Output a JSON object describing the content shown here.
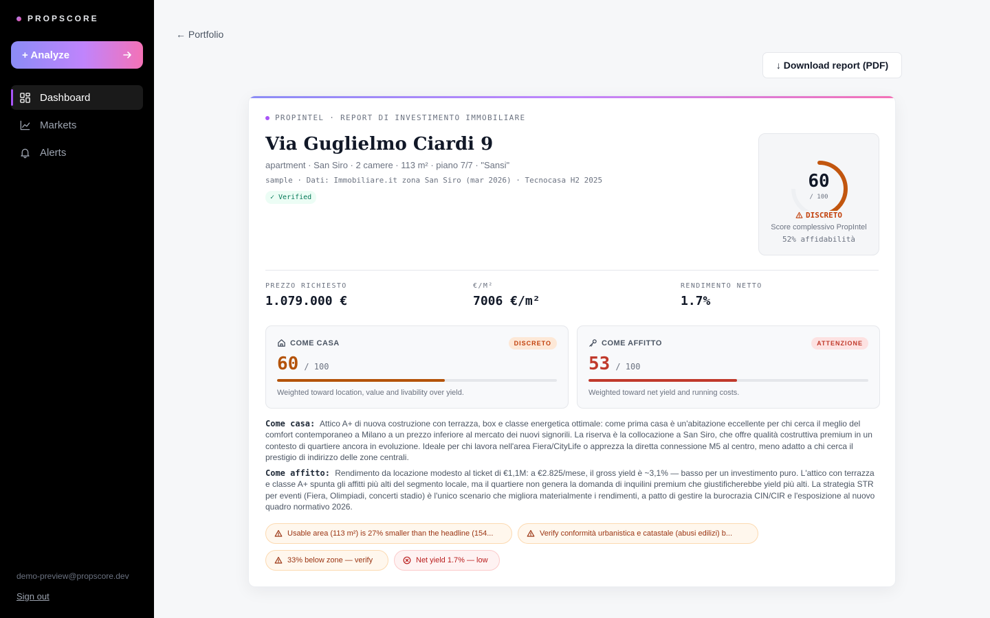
{
  "brand": {
    "name": "PROPSCORE"
  },
  "sidebar": {
    "analyze_label": "+ Analyze",
    "nav": [
      {
        "label": "Dashboard",
        "icon": "dashboard-icon",
        "active": true
      },
      {
        "label": "Markets",
        "icon": "chart-line-icon",
        "active": false
      },
      {
        "label": "Alerts",
        "icon": "bell-icon",
        "active": false
      }
    ],
    "user_email": "demo-preview@propscore.dev",
    "sign_out_label": "Sign out"
  },
  "header": {
    "back_label": "← Portfolio",
    "download_label": "↓ Download report (PDF)"
  },
  "report": {
    "eyebrow": "PROPINTEL · REPORT DI INVESTIMENTO IMMOBILIARE",
    "title": "Via Guglielmo Ciardi 9",
    "subtitle": "apartment · San Siro · 2 camere · 113 m² · piano 7/7 · \"Sansi\"",
    "source": "sample · Dati: Immobiliare.it zona San Siro (mar 2026) · Tecnocasa H2 2025",
    "verified_label": "✓ Verified",
    "score": {
      "value": "60",
      "denominator": "/ 100",
      "fraction": 0.6,
      "rating": "DISCRETO",
      "caption": "Score complessivo PropIntel",
      "reliability": "52% affidabilità",
      "color": "#c2560f"
    },
    "metrics": [
      {
        "label": "PREZZO RICHIESTO",
        "value": "1.079.000 €"
      },
      {
        "label": "€/M²",
        "value": "7006 €/m²"
      },
      {
        "label": "RENDIMENTO NETTO",
        "value": "1.7%"
      }
    ],
    "subscores": [
      {
        "label": "COME CASA",
        "icon": "home-icon",
        "badge": "DISCRETO",
        "badge_bg": "#fde8d7",
        "badge_color": "#c2410c",
        "score": "60",
        "denominator": "/ 100",
        "fraction": 0.6,
        "color": "#b45309",
        "note": "Weighted toward location, value and livability over yield."
      },
      {
        "label": "COME AFFITTO",
        "icon": "key-icon",
        "badge": "ATTENZIONE",
        "badge_bg": "#fde2e2",
        "badge_color": "#c0392b",
        "score": "53",
        "denominator": "/ 100",
        "fraction": 0.53,
        "color": "#c0392b",
        "note": "Weighted toward net yield and running costs."
      }
    ],
    "analysis": {
      "casa_label": "Come casa:",
      "casa_text": "Attico A+ di nuova costruzione con terrazza, box e classe energetica ottimale: come prima casa è un'abitazione eccellente per chi cerca il meglio del comfort contemporaneo a Milano a un prezzo inferiore al mercato dei nuovi signorili. La riserva è la collocazione a San Siro, che offre qualità costruttiva premium in un contesto di quartiere ancora in evoluzione. Ideale per chi lavora nell'area Fiera/CityLife o apprezza la diretta connessione M5 al centro, meno adatto a chi cerca il prestigio di indirizzo delle zone centrali.",
      "affitto_label": "Come affitto:",
      "affitto_text": "Rendimento da locazione modesto al ticket di €1,1M: a €2.825/mese, il gross yield è ~3,1% — basso per un investimento puro. L'attico con terrazza e classe A+ spunta gli affitti più alti del segmento locale, ma il quartiere non genera la domanda di inquilini premium che giustificherebbe yield più alti. La strategia STR per eventi (Fiera, Olimpiadi, concerti stadio) è l'unico scenario che migliora materialmente i rendimenti, a patto di gestire la burocrazia CIN/CIR e l'esposizione al nuovo quadro normativo 2026."
    },
    "warnings": [
      {
        "text": "Usable area (113 m²) is 27% smaller than the headline (154...",
        "severity": "amber",
        "icon": "warning-icon"
      },
      {
        "text": "Verify conformità urbanistica e catastale (abusi edilizi) b...",
        "severity": "amber",
        "icon": "warning-icon"
      },
      {
        "text": "33% below zone — verify",
        "severity": "amber",
        "icon": "warning-icon"
      },
      {
        "text": "Net yield 1.7% — low",
        "severity": "red",
        "icon": "x-circle-icon"
      }
    ]
  }
}
